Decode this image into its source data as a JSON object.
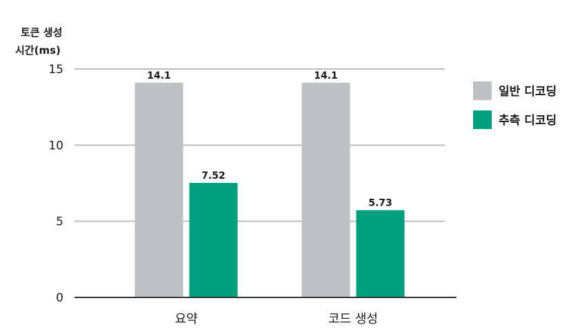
{
  "chart_data": {
    "type": "bar",
    "ylabel_lines": [
      "토큰 생성",
      "시간(ms)"
    ],
    "ylim": [
      0,
      15
    ],
    "yticks": [
      0,
      5,
      10,
      15
    ],
    "categories": [
      "요약",
      "코드 생성"
    ],
    "series": [
      {
        "name": "일반 디코딩",
        "values": [
          14.1,
          14.1
        ],
        "labels": [
          "14.1",
          "14.1"
        ],
        "color": "#bfc0c4"
      },
      {
        "name": "추측 디코딩",
        "values": [
          7.52,
          5.73
        ],
        "labels": [
          "7.52",
          "5.73"
        ],
        "color": "#009f7e"
      }
    ],
    "grid": true,
    "legend_position": "right"
  }
}
